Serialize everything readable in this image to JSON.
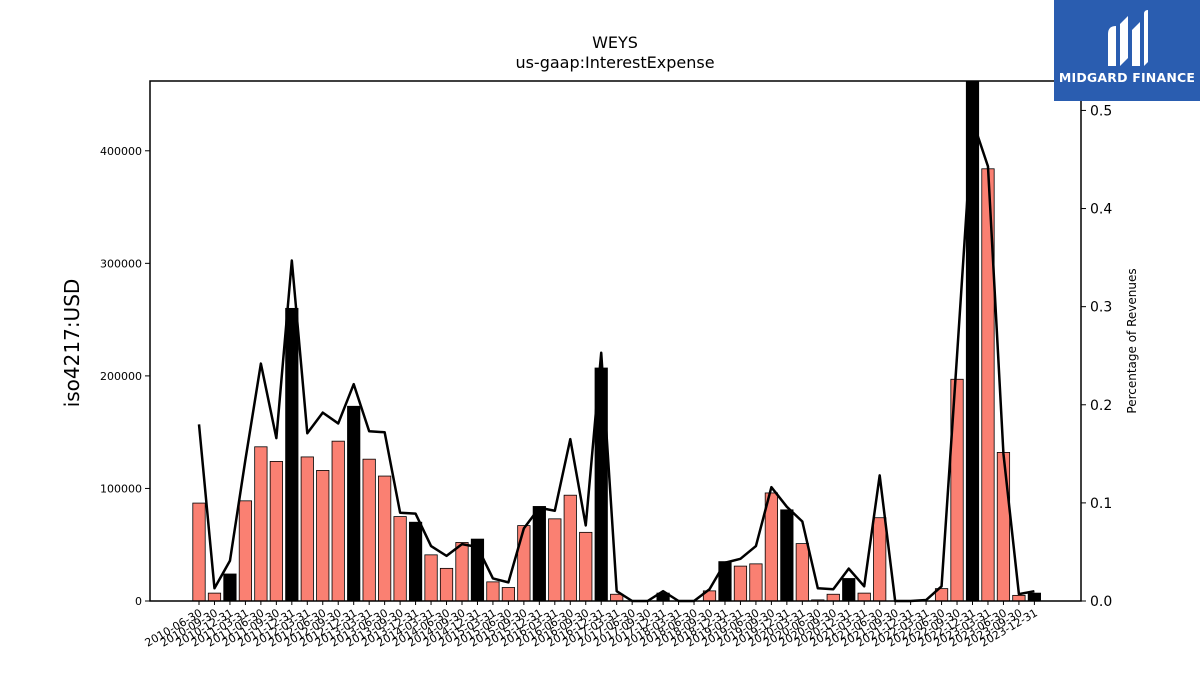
{
  "chart_data": {
    "type": "bar+line",
    "title": "WEYS",
    "subtitle": "us-gaap:InterestExpense",
    "ylabel": "iso4217:USD",
    "ylabel_right": "Percentage of Revenues",
    "ylim": [
      0,
      462000
    ],
    "ylim_right": [
      0,
      0.53
    ],
    "yticks": [
      0,
      100000,
      200000,
      300000,
      400000
    ],
    "yticks_right": [
      0.0,
      0.1,
      0.2,
      0.3,
      0.4,
      0.5
    ],
    "colors": {
      "quarter": "#fa8072",
      "annual": "#000000",
      "line": "#000000"
    },
    "categories": [
      "2010-06-30",
      "2010-09-30",
      "2010-12-31",
      "2011-03-31",
      "2011-06-30",
      "2011-09-30",
      "2011-12-31",
      "2012-03-31",
      "2012-06-30",
      "2012-09-30",
      "2012-12-31",
      "2013-03-31",
      "2013-06-30",
      "2013-09-30",
      "2013-12-31",
      "2014-03-31",
      "2014-06-30",
      "2014-09-30",
      "2014-12-31",
      "2015-03-31",
      "2015-06-30",
      "2015-09-30",
      "2015-12-31",
      "2016-03-31",
      "2016-06-30",
      "2016-09-30",
      "2016-12-31",
      "2017-03-31",
      "2017-06-30",
      "2017-09-30",
      "2017-12-31",
      "2018-03-31",
      "2018-06-30",
      "2018-09-30",
      "2018-12-31",
      "2019-03-31",
      "2019-06-30",
      "2019-09-30",
      "2019-12-31",
      "2020-03-31",
      "2020-06-30",
      "2020-09-30",
      "2020-12-31",
      "2021-03-31",
      "2021-06-30",
      "2021-09-30",
      "2021-12-31",
      "2022-03-31",
      "2022-06-30",
      "2022-09-30",
      "2022-12-31",
      "2023-03-31",
      "2023-06-30",
      "2023-09-30",
      "2023-12-31"
    ],
    "series": [
      {
        "values": [
          87000,
          7000,
          24000,
          89000,
          137000,
          124000,
          260000,
          128000,
          116000,
          142000,
          173000,
          126000,
          111000,
          75000,
          70000,
          41000,
          29000,
          52000,
          55000,
          17000,
          12000,
          67000,
          84000,
          73000,
          94000,
          61000,
          207000,
          6000,
          0,
          0,
          7000,
          0,
          0,
          9000,
          35000,
          31000,
          33000,
          96000,
          81000,
          51000,
          1000,
          6000,
          20000,
          7000,
          74000,
          0,
          0,
          0,
          11000,
          197000,
          470000,
          384000,
          132000,
          5000,
          7000
        ]
      },
      {
        "values": [
          0.18,
          0.013,
          0.041,
          0.144,
          0.242,
          0.166,
          0.347,
          0.171,
          0.192,
          0.181,
          0.221,
          0.173,
          0.172,
          0.09,
          0.089,
          0.056,
          0.046,
          0.058,
          0.055,
          0.023,
          0.019,
          0.074,
          0.095,
          0.092,
          0.165,
          0.077,
          0.253,
          0.01,
          0.0,
          0.0,
          0.01,
          0.0,
          0.0,
          0.012,
          0.039,
          0.043,
          0.056,
          0.116,
          0.096,
          0.081,
          0.013,
          0.012,
          0.033,
          0.015,
          0.128,
          0.0,
          0.0,
          0.001,
          0.015,
          0.25,
          0.49,
          0.443,
          0.15,
          0.007,
          0.01
        ]
      }
    ],
    "annual_flags": [
      0,
      0,
      1,
      0,
      0,
      0,
      1,
      0,
      0,
      0,
      1,
      0,
      0,
      0,
      1,
      0,
      0,
      0,
      1,
      0,
      0,
      0,
      1,
      0,
      0,
      0,
      1,
      0,
      0,
      0,
      1,
      0,
      0,
      0,
      1,
      0,
      0,
      0,
      1,
      0,
      0,
      0,
      1,
      0,
      0,
      0,
      1,
      0,
      0,
      0,
      1,
      0,
      0,
      0,
      1
    ]
  },
  "logo": {
    "text": "MIDGARD FINANCE"
  }
}
